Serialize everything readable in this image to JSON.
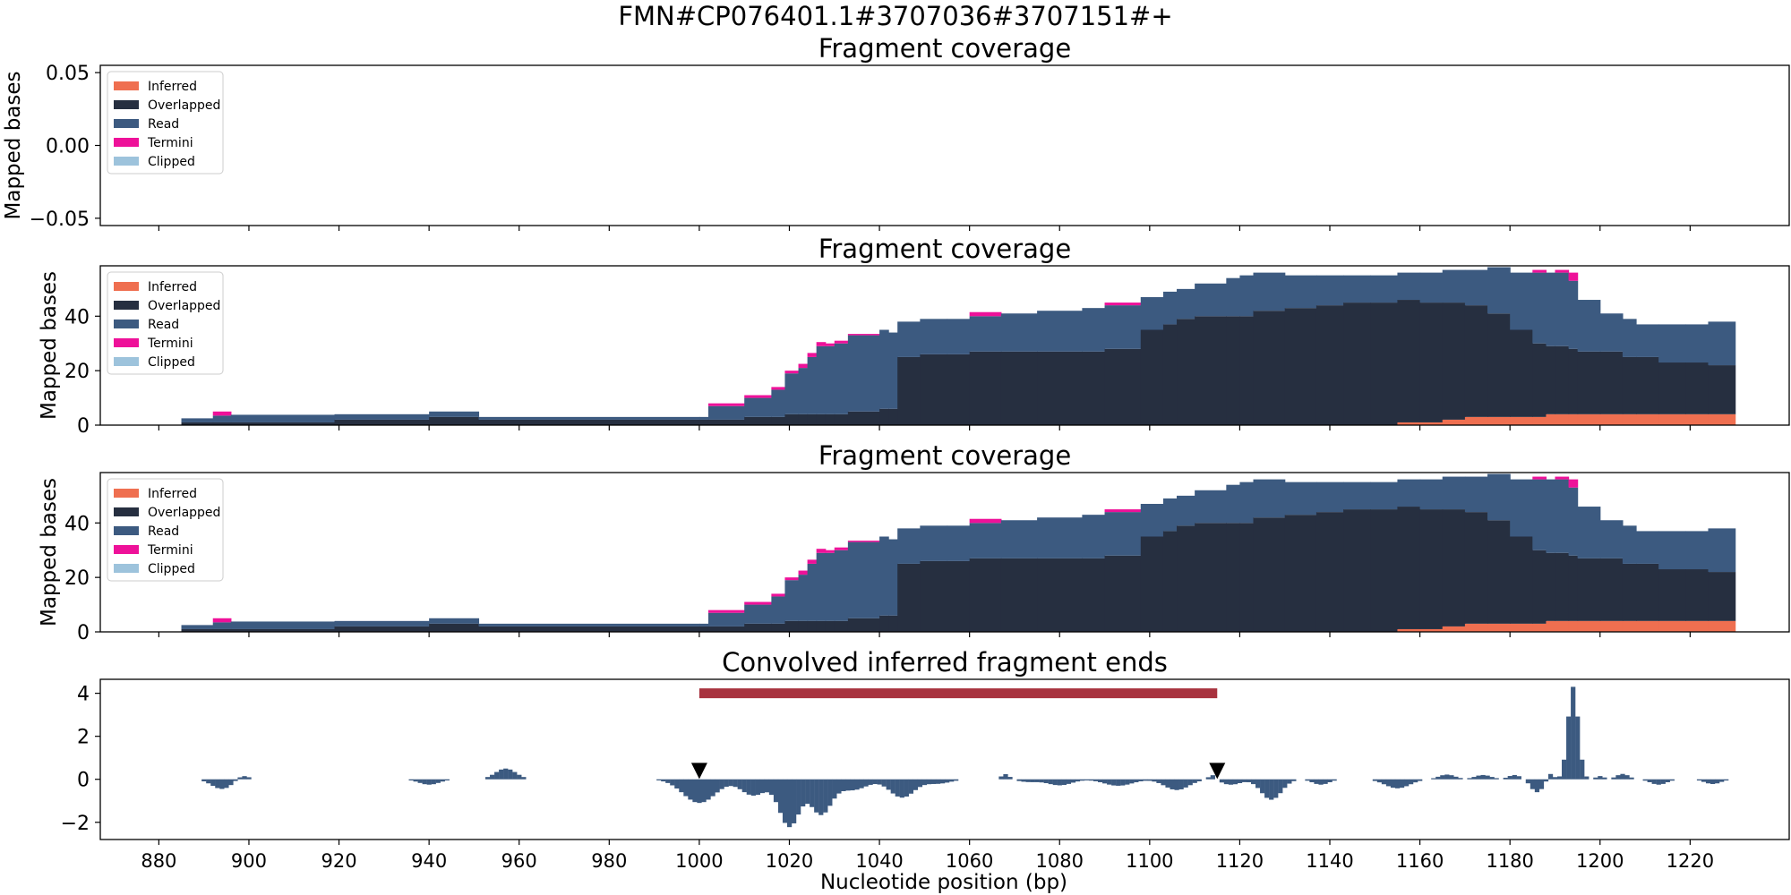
{
  "figure": {
    "suptitle": "FMN#CP076401.1#3707036#3707151#+",
    "xlabel": "Nucleotide position (bp)",
    "x_ticks": [
      880,
      900,
      920,
      940,
      960,
      980,
      1000,
      1020,
      1040,
      1060,
      1080,
      1100,
      1120,
      1140,
      1160,
      1180,
      1200,
      1220
    ],
    "xlim": [
      867,
      1242
    ]
  },
  "colors": {
    "inferred": "#ef6f50",
    "overlapped": "#262f40",
    "read": "#3c5a80",
    "termini": "#ee1199",
    "clipped": "#9dc3dc",
    "interval": "#a8323e",
    "marker": "#000000"
  },
  "legend": [
    "Inferred",
    "Overlapped",
    "Read",
    "Termini",
    "Clipped"
  ],
  "chart_data": [
    {
      "type": "area",
      "stacked": true,
      "title": "Fragment coverage",
      "ylabel": "Mapped bases",
      "ylim": [
        -0.055,
        0.055
      ],
      "y_ticks": [
        "0.05",
        "0.00",
        "−0.05"
      ],
      "y_tick_values": [
        0.05,
        0.0,
        -0.05
      ],
      "legend_position": "upper-left",
      "series": []
    },
    {
      "type": "area",
      "stacked": true,
      "title": "Fragment coverage",
      "ylabel": "Mapped bases",
      "ylim": [
        0,
        58.5
      ],
      "y_ticks": [
        "0",
        "20",
        "40"
      ],
      "y_tick_values": [
        0,
        20,
        40
      ],
      "legend_position": "upper-left",
      "positions": [
        885,
        892,
        896,
        919,
        940,
        951,
        1000,
        1002,
        1010,
        1016,
        1019,
        1022,
        1024,
        1026,
        1028,
        1030,
        1033,
        1040,
        1042,
        1044,
        1049,
        1055,
        1060,
        1067,
        1075,
        1085,
        1090,
        1098,
        1103,
        1106,
        1110,
        1117,
        1120,
        1123,
        1130,
        1137,
        1143,
        1149,
        1155,
        1160,
        1165,
        1170,
        1175,
        1180,
        1185,
        1188,
        1190,
        1193,
        1195,
        1200,
        1205,
        1208,
        1213,
        1219,
        1224,
        1230
      ],
      "inferred": [
        0,
        0,
        0,
        0,
        0,
        0,
        0,
        0,
        0,
        0,
        0,
        0,
        0,
        0,
        0,
        0,
        0,
        0,
        0,
        0,
        0,
        0,
        0,
        0,
        0,
        0,
        0,
        0,
        0,
        0,
        0,
        0,
        0,
        0,
        0,
        0,
        0,
        0,
        1,
        1,
        2,
        3,
        3,
        3,
        3,
        4,
        4,
        4,
        4,
        4,
        4,
        4,
        4,
        4,
        4,
        4
      ],
      "overlapped": [
        1,
        1,
        1,
        2,
        3,
        2,
        2,
        2,
        3,
        3,
        4,
        4,
        4,
        4,
        4,
        4,
        5,
        6,
        6,
        25,
        26,
        26,
        27,
        27,
        27,
        27,
        28,
        35,
        37,
        39,
        40,
        40,
        40,
        42,
        43,
        44,
        45,
        45,
        45,
        44,
        43,
        41,
        38,
        32,
        27,
        25,
        25,
        24,
        23,
        23,
        21,
        21,
        19,
        19,
        18,
        18
      ],
      "read": [
        1.5,
        2.5,
        2.8,
        2,
        2,
        1,
        1,
        5,
        7,
        10,
        15,
        17,
        21,
        25,
        25,
        26,
        28,
        29,
        28,
        13,
        13,
        13,
        13,
        14,
        15,
        16,
        16,
        12,
        12,
        11,
        12,
        14,
        15,
        14,
        12,
        11,
        10,
        10,
        10,
        11,
        12,
        13,
        17,
        21,
        26,
        27,
        27,
        25,
        19,
        14,
        14,
        12,
        14,
        14,
        16,
        16
      ],
      "termini": [
        0,
        1.5,
        0,
        0,
        0,
        0,
        0,
        1,
        1,
        1,
        1,
        1.5,
        1.5,
        1.5,
        1,
        1,
        0.5,
        0,
        0,
        0,
        0,
        0,
        1.5,
        0,
        0,
        0,
        1,
        0,
        0,
        0,
        0,
        0,
        0,
        0,
        0,
        0,
        0,
        0,
        0,
        0,
        0,
        0,
        0,
        0,
        1,
        0,
        1,
        3,
        0,
        0,
        0,
        0,
        0,
        0,
        0,
        0
      ]
    },
    {
      "type": "area",
      "stacked": true,
      "title": "Fragment coverage",
      "ylabel": "Mapped bases",
      "ylim": [
        0,
        58.5
      ],
      "y_ticks": [
        "0",
        "20",
        "40"
      ],
      "y_tick_values": [
        0,
        20,
        40
      ],
      "legend_position": "upper-left",
      "same_data_as_panel": 1
    },
    {
      "type": "bar",
      "title": "Convolved inferred fragment ends",
      "ylim": [
        -2.8,
        4.65
      ],
      "y_ticks": [
        "4",
        "2",
        "0",
        "−2"
      ],
      "y_tick_values": [
        4,
        2,
        0,
        -2
      ],
      "interval": {
        "start": 1000,
        "end": 1115,
        "y": 4.0
      },
      "markers": [
        1000,
        1115
      ],
      "marker_y": 0.35,
      "bumps": [
        {
          "center": 894,
          "width": 5,
          "amp": -0.45
        },
        {
          "center": 898.5,
          "width": 3,
          "amp": 0.2
        },
        {
          "center": 940,
          "width": 5,
          "amp": -0.25
        },
        {
          "center": 957,
          "width": 5,
          "amp": 0.5
        },
        {
          "center": 1000,
          "width": 8,
          "amp": -1.1
        },
        {
          "center": 1012,
          "width": 6,
          "amp": -0.75
        },
        {
          "center": 1020,
          "width": 5,
          "amp": -2.2
        },
        {
          "center": 1027,
          "width": 5,
          "amp": -1.6
        },
        {
          "center": 1034,
          "width": 7,
          "amp": -0.5
        },
        {
          "center": 1045,
          "width": 6,
          "amp": -0.85
        },
        {
          "center": 1053,
          "width": 6,
          "amp": -0.2
        },
        {
          "center": 1068,
          "width": 2,
          "amp": 0.25
        },
        {
          "center": 1073,
          "width": 5,
          "amp": -0.12
        },
        {
          "center": 1080,
          "width": 6,
          "amp": -0.28
        },
        {
          "center": 1093,
          "width": 7,
          "amp": -0.3
        },
        {
          "center": 1106,
          "width": 6,
          "amp": -0.5
        },
        {
          "center": 1114,
          "width": 2,
          "amp": 0.25
        },
        {
          "center": 1118,
          "width": 5,
          "amp": -0.25
        },
        {
          "center": 1127,
          "width": 5,
          "amp": -0.95
        },
        {
          "center": 1138,
          "width": 4,
          "amp": -0.25
        },
        {
          "center": 1155,
          "width": 6,
          "amp": -0.42
        },
        {
          "center": 1166,
          "width": 4,
          "amp": 0.22
        },
        {
          "center": 1174,
          "width": 4,
          "amp": 0.2
        },
        {
          "center": 1181,
          "width": 3,
          "amp": 0.2
        },
        {
          "center": 1186,
          "width": 3,
          "amp": -0.6
        },
        {
          "center": 1189,
          "width": 1.5,
          "amp": 0.3
        },
        {
          "center": 1194,
          "width": 2.5,
          "amp": 4.3
        },
        {
          "center": 1200,
          "width": 2,
          "amp": 0.15
        },
        {
          "center": 1205,
          "width": 3,
          "amp": 0.25
        },
        {
          "center": 1213,
          "width": 4,
          "amp": -0.25
        },
        {
          "center": 1225,
          "width": 4,
          "amp": -0.22
        }
      ]
    }
  ]
}
